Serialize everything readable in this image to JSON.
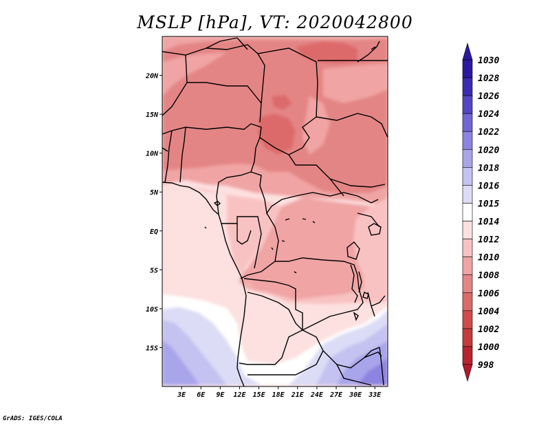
{
  "title": "MSLP [hPa], VT: 2020042800",
  "map": {
    "lon_range": [
      0,
      35
    ],
    "lat_range": [
      -20,
      25
    ],
    "lon_ticks": [
      {
        "lon": 3,
        "label": "3E"
      },
      {
        "lon": 6,
        "label": "6E"
      },
      {
        "lon": 9,
        "label": "9E"
      },
      {
        "lon": 12,
        "label": "12E"
      },
      {
        "lon": 15,
        "label": "15E"
      },
      {
        "lon": 18,
        "label": "18E"
      },
      {
        "lon": 21,
        "label": "21E"
      },
      {
        "lon": 24,
        "label": "24E"
      },
      {
        "lon": 27,
        "label": "27E"
      },
      {
        "lon": 30,
        "label": "30E"
      },
      {
        "lon": 33,
        "label": "33E"
      }
    ],
    "lat_ticks": [
      {
        "lat": 20,
        "label": "20N"
      },
      {
        "lat": 15,
        "label": "15N"
      },
      {
        "lat": 10,
        "label": "10N"
      },
      {
        "lat": 5,
        "label": "5N"
      },
      {
        "lat": 0,
        "label": "EQ"
      },
      {
        "lat": -5,
        "label": "5S"
      },
      {
        "lat": -10,
        "label": "10S"
      },
      {
        "lat": -15,
        "label": "15S"
      }
    ]
  },
  "colorbar": {
    "levels": [
      {
        "label": "998",
        "color": "#b2182b"
      },
      {
        "label": "1000",
        "color": "#b8242e"
      },
      {
        "label": "1002",
        "color": "#c53a3a"
      },
      {
        "label": "1004",
        "color": "#d24b4b"
      },
      {
        "label": "1006",
        "color": "#dd6a6a"
      },
      {
        "label": "1008",
        "color": "#e48585"
      },
      {
        "label": "1010",
        "color": "#f0a4a4"
      },
      {
        "label": "1012",
        "color": "#f9c2c2"
      },
      {
        "label": "1014",
        "color": "#fde0e0"
      },
      {
        "label": "1015",
        "color": "#ffffff"
      },
      {
        "label": "1016",
        "color": "#dcdcf6"
      },
      {
        "label": "1018",
        "color": "#c4c2f0"
      },
      {
        "label": "1020",
        "color": "#a9a5ea"
      },
      {
        "label": "1022",
        "color": "#8c84e0"
      },
      {
        "label": "1024",
        "color": "#7066d4"
      },
      {
        "label": "1026",
        "color": "#5346c4"
      },
      {
        "label": "1028",
        "color": "#3a2cb3"
      },
      {
        "label": "1030",
        "color": "#2b1aa0"
      }
    ],
    "under_color": "#b2182b",
    "over_color": "#2b1aa0"
  },
  "credit": "GrADS: IGES/COLA"
}
